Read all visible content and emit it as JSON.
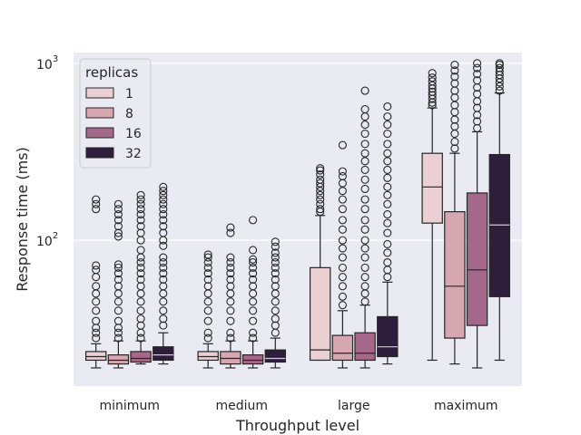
{
  "chart_data": {
    "type": "box",
    "xlabel": "Throughput level",
    "ylabel": "Response time (ms)",
    "yscale": "log",
    "ylim": [
      15,
      1150
    ],
    "y_ticks": [
      {
        "value": 100,
        "base": "10",
        "exp": "2"
      },
      {
        "value": 1000,
        "base": "10",
        "exp": "3"
      }
    ],
    "grid": true,
    "legend": {
      "title": "replicas",
      "position": "top-left"
    },
    "categories": [
      "minimum",
      "medium",
      "large",
      "maximum"
    ],
    "series": [
      {
        "name": "1",
        "color": "#eacfd3",
        "boxes": [
          {
            "whislo": 19,
            "q1": 21,
            "med": 22,
            "q3": 23.5,
            "whishi": 26,
            "fliers": [
              28,
              30,
              32,
              35,
              40,
              45,
              50,
              55,
              62,
              68,
              72,
              150,
              160,
              170
            ]
          },
          {
            "whislo": 19,
            "q1": 21,
            "med": 22,
            "q3": 23.5,
            "whishi": 26,
            "fliers": [
              28,
              30,
              35,
              40,
              45,
              50,
              55,
              60,
              65,
              70,
              75,
              80,
              83
            ]
          },
          {
            "whislo": 21,
            "q1": 21,
            "med": 24,
            "q3": 70,
            "whishi": 138,
            "fliers": [
              145,
              150,
              160,
              170,
              180,
              190,
              200,
              210,
              220,
              235,
              248,
              255
            ]
          },
          {
            "whislo": 21,
            "q1": 125,
            "med": 200,
            "q3": 310,
            "whishi": 560,
            "fliers": [
              580,
              600,
              630,
              660,
              690,
              720,
              750,
              790,
              830,
              880
            ]
          }
        ]
      },
      {
        "name": "8",
        "color": "#d6a6b1",
        "boxes": [
          {
            "whislo": 19,
            "q1": 20,
            "med": 21,
            "q3": 22.5,
            "whishi": 27,
            "fliers": [
              28,
              30,
              32,
              35,
              40,
              45,
              50,
              55,
              60,
              65,
              70,
              73,
              105,
              110,
              120,
              130,
              140,
              150,
              160
            ]
          },
          {
            "whislo": 19,
            "q1": 20,
            "med": 21.5,
            "q3": 23.5,
            "whishi": 27,
            "fliers": [
              28,
              30,
              35,
              40,
              45,
              50,
              55,
              60,
              65,
              70,
              75,
              80,
              110,
              118
            ]
          },
          {
            "whislo": 19,
            "q1": 21,
            "med": 23,
            "q3": 29,
            "whishi": 40,
            "fliers": [
              43,
              48,
              55,
              62,
              70,
              80,
              90,
              100,
              115,
              130,
              150,
              170,
              190,
              210,
              230,
              245,
              345
            ]
          },
          {
            "whislo": 20,
            "q1": 28,
            "med": 55,
            "q3": 145,
            "whishi": 310,
            "fliers": [
              330,
              360,
              400,
              440,
              480,
              530,
              580,
              640,
              700,
              770,
              840,
              910,
              980
            ]
          }
        ]
      },
      {
        "name": "16",
        "color": "#a6688a",
        "boxes": [
          {
            "whislo": 20,
            "q1": 20.5,
            "med": 21.5,
            "q3": 23.5,
            "whishi": 27,
            "fliers": [
              28,
              30,
              33,
              36,
              40,
              45,
              50,
              55,
              60,
              65,
              70,
              75,
              80,
              88,
              100,
              110,
              120,
              130,
              140,
              150,
              160,
              170,
              180
            ]
          },
          {
            "whislo": 19,
            "q1": 20,
            "med": 21,
            "q3": 22.5,
            "whishi": 27,
            "fliers": [
              28,
              30,
              35,
              40,
              45,
              50,
              55,
              60,
              65,
              70,
              75,
              78,
              88,
              130
            ]
          },
          {
            "whislo": 19,
            "q1": 21,
            "med": 23,
            "q3": 30,
            "whishi": 43,
            "fliers": [
              45,
              50,
              55,
              62,
              70,
              80,
              90,
              100,
              115,
              130,
              150,
              170,
              195,
              220,
              250,
              280,
              310,
              350,
              400,
              450,
              500,
              550,
              700
            ]
          },
          {
            "whislo": 19,
            "q1": 33,
            "med": 68,
            "q3": 185,
            "whishi": 410,
            "fliers": [
              430,
              470,
              510,
              560,
              610,
              670,
              730,
              800,
              870,
              940,
              1000
            ]
          }
        ]
      },
      {
        "name": "32",
        "color": "#2e1e3c",
        "boxes": [
          {
            "whislo": 20,
            "q1": 21,
            "med": 22.5,
            "q3": 25,
            "whishi": 30,
            "fliers": [
              33,
              36,
              40,
              45,
              50,
              55,
              60,
              65,
              70,
              75,
              80,
              93,
              100,
              110,
              120,
              130,
              140,
              150,
              160,
              170,
              180,
              190,
              200
            ]
          },
          {
            "whislo": 19,
            "q1": 20.5,
            "med": 21.5,
            "q3": 24,
            "whishi": 28,
            "fliers": [
              30,
              33,
              36,
              40,
              45,
              50,
              55,
              60,
              65,
              70,
              75,
              80,
              85,
              92,
              98
            ]
          },
          {
            "whislo": 20,
            "q1": 22,
            "med": 25,
            "q3": 37,
            "whishi": 58,
            "fliers": [
              62,
              68,
              75,
              85,
              95,
              110,
              125,
              140,
              160,
              180,
              200,
              225,
              250,
              280,
              310,
              350,
              400,
              450,
              500,
              570
            ]
          },
          {
            "whislo": 21,
            "q1": 48,
            "med": 122,
            "q3": 305,
            "whishi": 680,
            "fliers": [
              700,
              740,
              780,
              820,
              860,
              900,
              940,
              980,
              1000
            ]
          }
        ]
      }
    ]
  }
}
